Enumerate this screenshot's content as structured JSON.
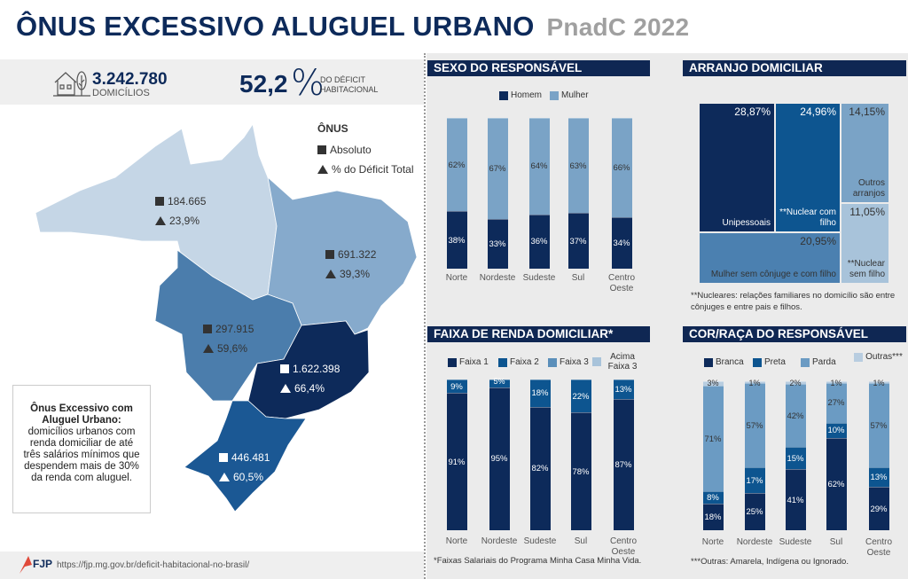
{
  "header": {
    "title": "ÔNUS EXCESSIVO ALUGUEL URBANO",
    "subtitle": "PnadC 2022"
  },
  "summary": {
    "domicilios_value": "3.242.780",
    "domicilios_label": "DOMICÍLIOS",
    "deficit_value": "52,2",
    "deficit_symbol": "%",
    "deficit_label_1": "DO DÉFICIT",
    "deficit_label_2": "HABITACIONAL",
    "icon": "house-tree-icon"
  },
  "map": {
    "legend": {
      "title": "ÔNUS",
      "absolute": "Absoluto",
      "percent": "% do Déficit Total"
    },
    "regions": [
      {
        "name": "Norte",
        "absolute": "184.665",
        "percent": "23,9%",
        "color": "#c5d6e6"
      },
      {
        "name": "Nordeste",
        "absolute": "691.322",
        "percent": "39,3%",
        "color": "#86aacc"
      },
      {
        "name": "Centro-Oeste",
        "absolute": "297.915",
        "percent": "59,6%",
        "color": "#4b7dac"
      },
      {
        "name": "Sudeste",
        "absolute": "1.622.398",
        "percent": "66,4%",
        "color": "#0d2a5a"
      },
      {
        "name": "Sul",
        "absolute": "446.481",
        "percent": "60,5%",
        "color": "#1b5894"
      }
    ]
  },
  "definition": {
    "title": "Ônus Excessivo com Aluguel Urbano:",
    "text": "domicílios urbanos com renda domiciliar de até três salários mínimos que despendem mais de 30% da renda com aluguel."
  },
  "footer": {
    "logo": "FJP",
    "url": "https://fjp.mg.gov.br/deficit-habitacional-no-brasil/"
  },
  "chart_data": [
    {
      "id": "sexo",
      "type": "bar",
      "stacked": true,
      "title": "SEXO DO RESPONSÁVEL",
      "categories": [
        "Norte",
        "Nordeste",
        "Sudeste",
        "Sul",
        "Centro Oeste"
      ],
      "unit": "%",
      "series": [
        {
          "name": "Homem",
          "values": [
            38,
            33,
            36,
            37,
            34
          ],
          "color": "#0d2a5a"
        },
        {
          "name": "Mulher",
          "values": [
            62,
            67,
            64,
            63,
            66
          ],
          "color": "#7aa3c6"
        }
      ],
      "ylim": [
        0,
        100
      ],
      "legend": "top"
    },
    {
      "id": "arranjo",
      "type": "treemap",
      "title": "ARRANJO DOMICILIAR",
      "items": [
        {
          "name": "Unipessoais",
          "value": "28,87%",
          "color": "#0d2a5a"
        },
        {
          "name": "**Nuclear com filho",
          "value": "24,96%",
          "color": "#0d5590"
        },
        {
          "name": "Outros arranjos",
          "value": "14,15%",
          "color": "#7aa3c6"
        },
        {
          "name": "Mulher sem cônjuge e com filho",
          "value": "20,95%",
          "color": "#4b80b0"
        },
        {
          "name": "**Nuclear sem filho",
          "value": "11,05%",
          "color": "#a8c3da"
        }
      ],
      "footnote": "**Nucleares: relações familiares no domicílio são entre cônjuges e entre pais e filhos."
    },
    {
      "id": "renda",
      "type": "bar",
      "stacked": true,
      "title": "FAIXA DE RENDA DOMICILIAR*",
      "categories": [
        "Norte",
        "Nordeste",
        "Sudeste",
        "Sul",
        "Centro Oeste"
      ],
      "unit": "%",
      "series": [
        {
          "name": "Faixa 1",
          "values": [
            91,
            95,
            82,
            78,
            87
          ],
          "color": "#0d2a5a"
        },
        {
          "name": "Faixa 2",
          "values": [
            9,
            5,
            18,
            22,
            13
          ],
          "color": "#0d5590"
        },
        {
          "name": "Faixa 3",
          "values": [
            0,
            0,
            0,
            0,
            0
          ],
          "color": "#5b8fba"
        },
        {
          "name": "Acima Faixa 3",
          "values": [
            0,
            0,
            0,
            0,
            0
          ],
          "color": "#a8c3da"
        }
      ],
      "ylim": [
        0,
        100
      ],
      "legend": "top",
      "footnote": "*Faixas Salariais do Programa Minha Casa Minha Vida."
    },
    {
      "id": "cor",
      "type": "bar",
      "stacked": true,
      "title": "COR/RAÇA DO RESPONSÁVEL",
      "categories": [
        "Norte",
        "Nordeste",
        "Sudeste",
        "Sul",
        "Centro Oeste"
      ],
      "unit": "%",
      "series": [
        {
          "name": "Branca",
          "values": [
            18,
            25,
            41,
            62,
            29
          ],
          "color": "#0d2a5a"
        },
        {
          "name": "Preta",
          "values": [
            8,
            17,
            15,
            10,
            13
          ],
          "color": "#0d5590"
        },
        {
          "name": "Parda",
          "values": [
            71,
            57,
            42,
            27,
            57
          ],
          "color": "#6b9bc3"
        },
        {
          "name": "Outras***",
          "values": [
            3,
            1,
            2,
            1,
            1
          ],
          "color": "#b8cde0"
        }
      ],
      "ylim": [
        0,
        100
      ],
      "legend": "top",
      "footnote": "***Outras: Amarela, Indígena ou Ignorado."
    }
  ]
}
